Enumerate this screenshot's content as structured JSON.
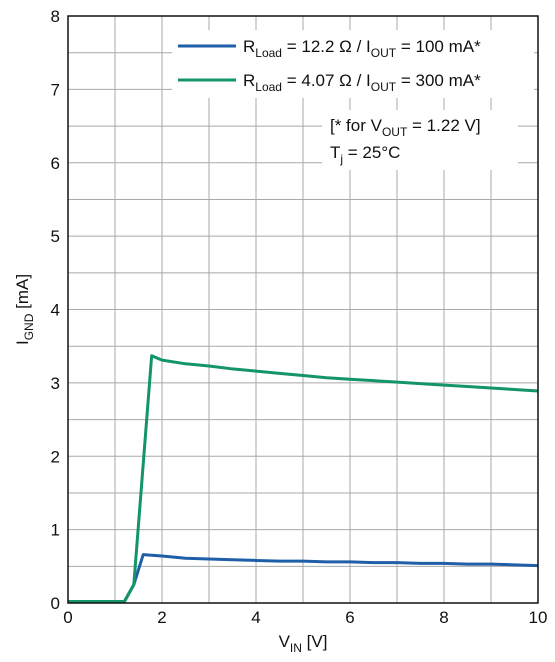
{
  "chart_data": {
    "type": "line",
    "xlabel": {
      "main": "V",
      "sub": "IN",
      "unit": " [V]"
    },
    "ylabel": {
      "main": "I",
      "sub": "GND",
      "unit": " [mA]"
    },
    "xlim": [
      0,
      10
    ],
    "ylim": [
      0,
      8
    ],
    "xticks": [
      0,
      2,
      4,
      6,
      8,
      10
    ],
    "yticks": [
      0,
      1,
      2,
      3,
      4,
      5,
      6,
      7,
      8
    ],
    "x_minor_step": 1,
    "y_minor_step": 0.5,
    "grid": true,
    "legend_position": "top-right",
    "series": [
      {
        "name": "R_Load = 12.2 Ω / I_OUT = 100 mA*",
        "legend": {
          "p1": "R",
          "s1": "Load",
          "p2": " = 12.2 Ω / I",
          "s2": "OUT",
          "p3": " = 100 mA*"
        },
        "color": "#1f5fa8",
        "x": [
          0,
          1.2,
          1.4,
          1.6,
          2.0,
          2.5,
          3.0,
          3.5,
          4.0,
          4.5,
          5.0,
          5.5,
          6.0,
          6.5,
          7.0,
          7.5,
          8.0,
          8.5,
          9.0,
          9.5,
          10.0
        ],
        "y": [
          0.02,
          0.02,
          0.25,
          0.66,
          0.64,
          0.61,
          0.6,
          0.59,
          0.58,
          0.57,
          0.57,
          0.56,
          0.56,
          0.55,
          0.55,
          0.54,
          0.54,
          0.53,
          0.53,
          0.52,
          0.51
        ]
      },
      {
        "name": "R_Load = 4.07 Ω / I_OUT = 300 mA*",
        "legend": {
          "p1": "R",
          "s1": "Load",
          "p2": " = 4.07 Ω / I",
          "s2": "OUT",
          "p3": " = 300 mA*"
        },
        "color": "#13946a",
        "x": [
          0,
          1.2,
          1.4,
          1.78,
          2.0,
          2.5,
          3.0,
          3.5,
          4.0,
          4.5,
          5.0,
          5.5,
          6.0,
          6.5,
          7.0,
          7.5,
          8.0,
          8.5,
          9.0,
          9.5,
          10.0
        ],
        "y": [
          0.02,
          0.02,
          0.25,
          3.37,
          3.31,
          3.26,
          3.23,
          3.19,
          3.16,
          3.13,
          3.1,
          3.07,
          3.05,
          3.03,
          3.01,
          2.99,
          2.97,
          2.95,
          2.93,
          2.91,
          2.89
        ]
      }
    ],
    "annotation": {
      "line1": {
        "p1": "[* for V",
        "s1": "OUT",
        "p2": " = 1.22 V]"
      },
      "line2": {
        "p1": "T",
        "s1": "j",
        "p2": " = 25°C"
      }
    }
  }
}
